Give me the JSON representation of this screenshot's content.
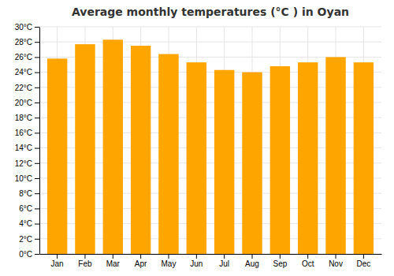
{
  "chart_data": {
    "type": "bar",
    "title": "Average monthly temperatures (°C ) in Oyan",
    "categories": [
      "Jan",
      "Feb",
      "Mar",
      "Apr",
      "May",
      "Jun",
      "Jul",
      "Aug",
      "Sep",
      "Oct",
      "Nov",
      "Dec"
    ],
    "values": [
      25.8,
      27.7,
      28.3,
      27.5,
      26.4,
      25.3,
      24.3,
      24.0,
      24.8,
      25.3,
      26.0,
      25.3
    ],
    "color": "#FFA500",
    "ylim": [
      0,
      30
    ],
    "yticks": [
      {
        "value": 0,
        "label": "0°C"
      },
      {
        "value": 2,
        "label": "2°C"
      },
      {
        "value": 4,
        "label": "4°C"
      },
      {
        "value": 6,
        "label": "6°C"
      },
      {
        "value": 8,
        "label": "8°C"
      },
      {
        "value": 10,
        "label": "10°C"
      },
      {
        "value": 12,
        "label": "12°C"
      },
      {
        "value": 14,
        "label": "14°C"
      },
      {
        "value": 16,
        "label": "16°C"
      },
      {
        "value": 18,
        "label": "18°C"
      },
      {
        "value": 20,
        "label": "20°C"
      },
      {
        "value": 22,
        "label": "22°C"
      },
      {
        "value": 24,
        "label": "24°C"
      },
      {
        "value": 26,
        "label": "26°C"
      },
      {
        "value": 28,
        "label": "28°C"
      },
      {
        "value": 30,
        "label": "30°C"
      }
    ],
    "grid": true
  }
}
